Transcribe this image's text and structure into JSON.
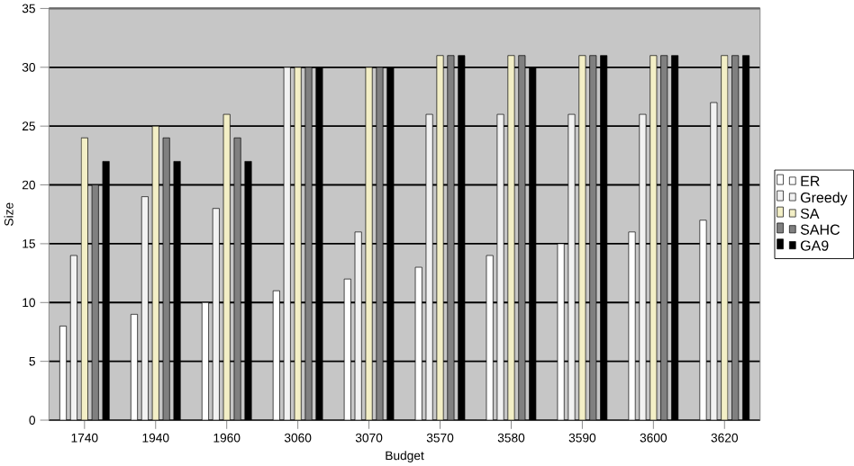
{
  "chart_data": {
    "type": "bar",
    "xlabel": "Budget",
    "ylabel": "Size",
    "categories": [
      "1740",
      "1940",
      "1960",
      "3060",
      "3070",
      "3570",
      "3580",
      "3590",
      "3600",
      "3620"
    ],
    "series": [
      {
        "name": "ER",
        "color": "#ffffff",
        "values": [
          8,
          9,
          10,
          11,
          12,
          13,
          14,
          15,
          16,
          17
        ]
      },
      {
        "name": "Greedy",
        "color": "#f2f2f2",
        "values": [
          14,
          19,
          18,
          30,
          16,
          26,
          26,
          26,
          26,
          27
        ]
      },
      {
        "name": "SA",
        "color": "#f3efc6",
        "values": [
          24,
          25,
          26,
          30,
          30,
          31,
          31,
          31,
          31,
          31
        ]
      },
      {
        "name": "SAHC",
        "color": "#808080",
        "values": [
          20,
          24,
          24,
          30,
          30,
          31,
          31,
          31,
          31,
          31
        ]
      },
      {
        "name": "GA9",
        "color": "#000000",
        "values": [
          22,
          22,
          22,
          30,
          30,
          31,
          30,
          31,
          31,
          31
        ]
      }
    ],
    "ylim": [
      0,
      35
    ],
    "yticks": [
      0,
      5,
      10,
      15,
      20,
      25,
      30,
      35
    ],
    "grid": "y",
    "legend": "right"
  }
}
